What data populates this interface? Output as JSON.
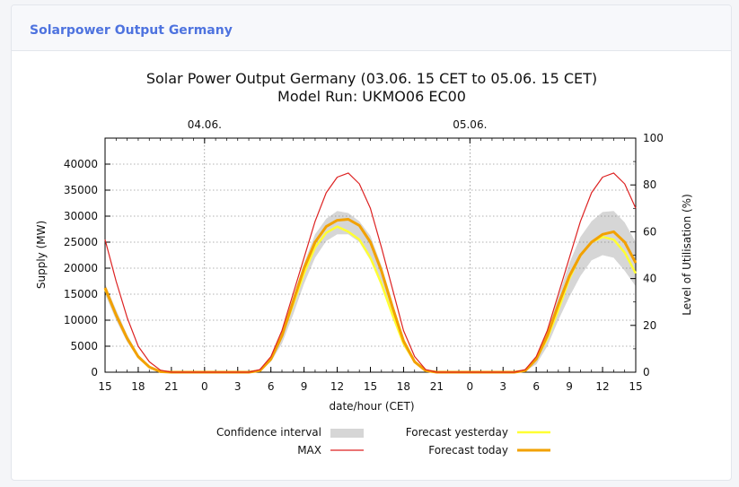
{
  "card": {
    "title": "Solarpower Output Germany"
  },
  "colors": {
    "max": "#dd2222",
    "forecast_today": "#f2a100",
    "forecast_yesterday": "#ffff33",
    "confidence": "#d6d6d6"
  },
  "chart_data": {
    "type": "line",
    "title": "Solar Power Output Germany (03.06. 15 CET to 05.06. 15 CET)",
    "subtitle": "Model Run: UKMO06 EC00",
    "xlabel": "date/hour (CET)",
    "ylabel": "Supply (MW)",
    "y2label": "Level of Utilisation (%)",
    "x_ticks": [
      "15",
      "18",
      "21",
      "0",
      "3",
      "6",
      "9",
      "12",
      "15",
      "18",
      "21",
      "0",
      "3",
      "6",
      "9",
      "12",
      "15"
    ],
    "x_top_labels": [
      "04.06.",
      "05.06."
    ],
    "y_ticks": [
      "0",
      "5000",
      "10000",
      "15000",
      "20000",
      "25000",
      "30000",
      "35000",
      "40000"
    ],
    "y2_ticks": [
      "0",
      "20",
      "40",
      "60",
      "80",
      "100"
    ],
    "ylim": [
      0,
      45000
    ],
    "y2lim": [
      0,
      100
    ],
    "grid": true,
    "legend_position": "bottom",
    "legend": {
      "confidence": "Confidence interval",
      "max": "MAX",
      "yesterday": "Forecast yesterday",
      "today": "Forecast today"
    },
    "hours_since_start": [
      0,
      1,
      2,
      3,
      4,
      5,
      6,
      7,
      8,
      9,
      10,
      11,
      12,
      13,
      14,
      15,
      16,
      17,
      18,
      19,
      20,
      21,
      22,
      23,
      24,
      25,
      26,
      27,
      28,
      29,
      30,
      31,
      32,
      33,
      34,
      35,
      36,
      37,
      38,
      39,
      40,
      41,
      42,
      43,
      44,
      45,
      46,
      47,
      48
    ],
    "series": [
      {
        "name": "MAX",
        "values": [
          25500,
          17500,
          10500,
          5000,
          2000,
          400,
          0,
          0,
          0,
          0,
          0,
          0,
          0,
          0,
          500,
          3000,
          8000,
          15000,
          22000,
          29000,
          34500,
          37500,
          38300,
          36200,
          31500,
          24000,
          16000,
          8000,
          3000,
          500,
          0,
          0,
          0,
          0,
          0,
          0,
          0,
          0,
          500,
          3000,
          8000,
          15000,
          22000,
          29000,
          34500,
          37500,
          38300,
          36200,
          31500
        ]
      },
      {
        "name": "Forecast yesterday",
        "values": [
          16000,
          11000,
          6500,
          3000,
          1000,
          100,
          0,
          0,
          0,
          0,
          0,
          0,
          0,
          0,
          300,
          2500,
          7000,
          13000,
          19000,
          24000,
          26800,
          28000,
          27000,
          25500,
          22000,
          17000,
          11000,
          5500,
          2000,
          300,
          0,
          0,
          0,
          0,
          0,
          0,
          0,
          0,
          300,
          2500,
          6500,
          12000,
          18000,
          22500,
          25000,
          26000,
          25500,
          23000,
          19000
        ]
      },
      {
        "name": "Forecast today",
        "values": [
          16200,
          11000,
          6500,
          3000,
          1000,
          100,
          0,
          0,
          0,
          0,
          0,
          0,
          0,
          0,
          300,
          2500,
          7000,
          13500,
          20000,
          25000,
          28000,
          29200,
          29400,
          28200,
          25000,
          19500,
          12500,
          6000,
          2000,
          300,
          0,
          0,
          0,
          0,
          0,
          0,
          0,
          0,
          300,
          2500,
          7000,
          13000,
          18500,
          22500,
          25000,
          26500,
          27000,
          25000,
          21000
        ]
      },
      {
        "name": "Confidence interval upper",
        "values": [
          17000,
          12000,
          7200,
          3400,
          1200,
          150,
          0,
          0,
          0,
          0,
          0,
          0,
          0,
          0,
          400,
          3000,
          7800,
          14500,
          21000,
          26500,
          29500,
          31000,
          30600,
          29000,
          26200,
          20500,
          13500,
          6500,
          2300,
          400,
          0,
          0,
          0,
          0,
          0,
          0,
          0,
          0,
          400,
          3000,
          7800,
          14500,
          21000,
          26000,
          29000,
          30800,
          31000,
          28800,
          25000
        ]
      },
      {
        "name": "Confidence interval lower",
        "values": [
          15000,
          10000,
          5800,
          2600,
          800,
          50,
          0,
          0,
          0,
          0,
          0,
          0,
          0,
          0,
          200,
          2000,
          5500,
          11000,
          17000,
          22000,
          25200,
          26500,
          26500,
          25000,
          21500,
          16500,
          10500,
          5000,
          1700,
          200,
          0,
          0,
          0,
          0,
          0,
          0,
          0,
          0,
          200,
          1500,
          5000,
          10000,
          14500,
          18500,
          21500,
          22500,
          22000,
          19500,
          16500
        ]
      }
    ]
  }
}
